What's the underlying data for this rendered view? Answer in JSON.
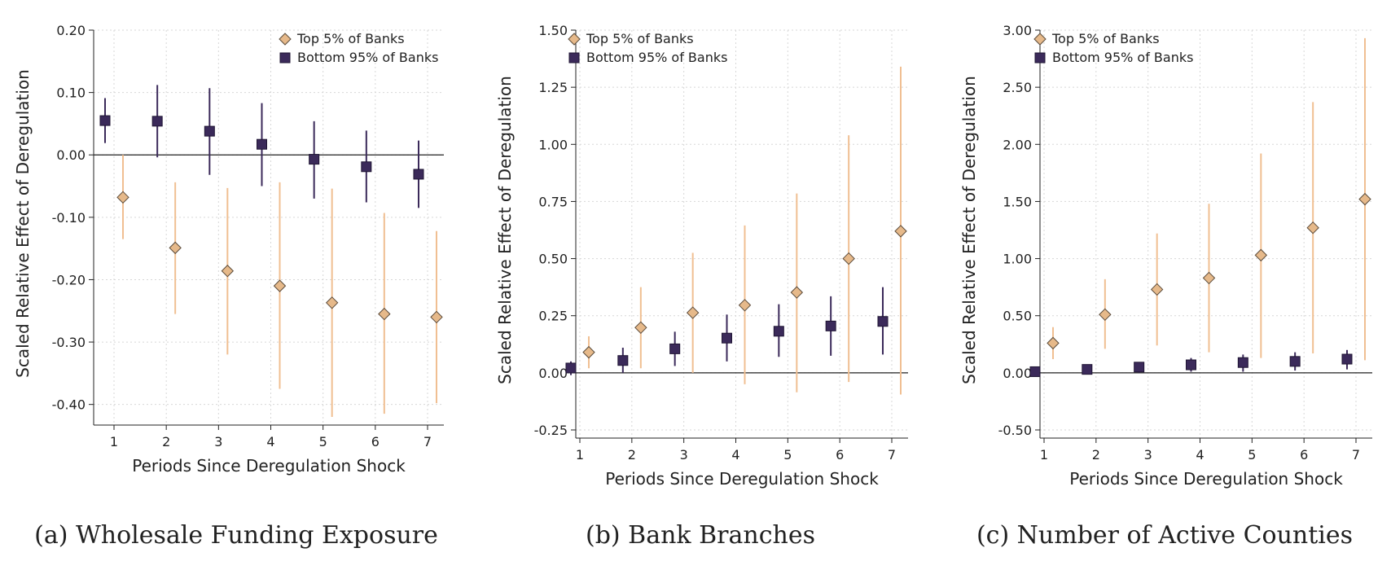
{
  "chart_data": [
    {
      "type": "scatter",
      "title": "(a) Wholesale Funding Exposure",
      "xlabel": "Periods Since Deregulation Shock",
      "ylabel": "Scaled Relative Effect of Deregulation",
      "x": [
        1,
        2,
        3,
        4,
        5,
        6,
        7
      ],
      "xticks": [
        "1",
        "2",
        "3",
        "4",
        "5",
        "6",
        "7"
      ],
      "ylim": [
        -0.42,
        0.2
      ],
      "yticks": [
        -0.4,
        -0.3,
        -0.2,
        -0.1,
        0.0,
        0.1,
        0.2
      ],
      "ytick_labels": [
        "-0.40",
        "-0.30",
        "-0.20",
        "-0.10",
        "0.00",
        "0.10",
        "0.20"
      ],
      "grid": true,
      "legend_position": "top-right",
      "series": [
        {
          "name": "Top 5% of Banks",
          "marker": "diamond",
          "color": "#e6b98a",
          "ci_color": "#f0bf92",
          "values": [
            -0.068,
            -0.149,
            -0.186,
            -0.21,
            -0.237,
            -0.255,
            -0.26
          ],
          "ci_low": [
            -0.135,
            -0.255,
            -0.32,
            -0.375,
            -0.42,
            -0.415,
            -0.398
          ],
          "ci_high": [
            0.0,
            -0.044,
            -0.053,
            -0.044,
            -0.054,
            -0.093,
            -0.122
          ]
        },
        {
          "name": "Bottom 95% of Banks",
          "marker": "square",
          "color": "#3b2a5a",
          "ci_color": "#3b2a5a",
          "values": [
            0.055,
            0.054,
            0.038,
            0.017,
            -0.007,
            -0.019,
            -0.031
          ],
          "ci_low": [
            0.019,
            -0.004,
            -0.032,
            -0.05,
            -0.07,
            -0.076,
            -0.085
          ],
          "ci_high": [
            0.091,
            0.112,
            0.107,
            0.083,
            0.054,
            0.039,
            0.023
          ]
        }
      ]
    },
    {
      "type": "scatter",
      "title": "(b) Bank Branches",
      "xlabel": "Periods Since Deregulation Shock",
      "ylabel": "Scaled Relative Effect of Deregulation",
      "x": [
        1,
        2,
        3,
        4,
        5,
        6,
        7
      ],
      "xticks": [
        "1",
        "2",
        "3",
        "4",
        "5",
        "6",
        "7"
      ],
      "ylim": [
        -0.25,
        1.5
      ],
      "yticks": [
        -0.25,
        0.0,
        0.25,
        0.5,
        0.75,
        1.0,
        1.25,
        1.5
      ],
      "ytick_labels": [
        "-0.25",
        "0.00",
        "0.25",
        "0.50",
        "0.75",
        "1.00",
        "1.25",
        "1.50"
      ],
      "grid": true,
      "legend_position": "top-left",
      "series": [
        {
          "name": "Top 5% of Banks",
          "marker": "diamond",
          "color": "#e6b98a",
          "ci_color": "#f0bf92",
          "values": [
            0.09,
            0.198,
            0.263,
            0.296,
            0.352,
            0.5,
            0.62
          ],
          "ci_low": [
            0.02,
            0.02,
            0.0,
            -0.05,
            -0.085,
            -0.04,
            -0.095
          ],
          "ci_high": [
            0.16,
            0.375,
            0.525,
            0.645,
            0.785,
            1.04,
            1.34
          ]
        },
        {
          "name": "Bottom 95% of Banks",
          "marker": "square",
          "color": "#3b2a5a",
          "ci_color": "#3b2a5a",
          "values": [
            0.021,
            0.054,
            0.105,
            0.152,
            0.182,
            0.205,
            0.225
          ],
          "ci_low": [
            -0.01,
            0.0,
            0.03,
            0.05,
            0.07,
            0.075,
            0.08
          ],
          "ci_high": [
            0.05,
            0.11,
            0.18,
            0.255,
            0.3,
            0.335,
            0.375
          ]
        }
      ]
    },
    {
      "type": "scatter",
      "title": "(c) Number of Active Counties",
      "xlabel": "Periods Since Deregulation Shock",
      "ylabel": "Scaled Relative Effect of Deregulation",
      "x": [
        1,
        2,
        3,
        4,
        5,
        6,
        7
      ],
      "xticks": [
        "1",
        "2",
        "3",
        "4",
        "5",
        "6",
        "7"
      ],
      "ylim": [
        -0.5,
        3.0
      ],
      "yticks": [
        -0.5,
        0.0,
        0.5,
        1.0,
        1.5,
        2.0,
        2.5,
        3.0
      ],
      "ytick_labels": [
        "-0.50",
        "0.00",
        "0.50",
        "1.00",
        "1.50",
        "2.00",
        "2.50",
        "3.00"
      ],
      "grid": true,
      "legend_position": "top-left",
      "series": [
        {
          "name": "Top 5% of Banks",
          "marker": "diamond",
          "color": "#e6b98a",
          "ci_color": "#f0bf92",
          "values": [
            0.26,
            0.51,
            0.73,
            0.83,
            1.03,
            1.27,
            1.52
          ],
          "ci_low": [
            0.12,
            0.21,
            0.24,
            0.18,
            0.13,
            0.17,
            0.11
          ],
          "ci_high": [
            0.4,
            0.82,
            1.22,
            1.48,
            1.92,
            2.37,
            2.93
          ]
        },
        {
          "name": "Bottom 95% of Banks",
          "marker": "square",
          "color": "#3b2a5a",
          "ci_color": "#3b2a5a",
          "values": [
            0.01,
            0.03,
            0.05,
            0.07,
            0.09,
            0.1,
            0.12
          ],
          "ci_low": [
            0.0,
            0.0,
            0.0,
            0.01,
            0.01,
            0.02,
            0.03
          ],
          "ci_high": [
            0.03,
            0.05,
            0.08,
            0.13,
            0.16,
            0.18,
            0.2
          ]
        }
      ]
    }
  ]
}
